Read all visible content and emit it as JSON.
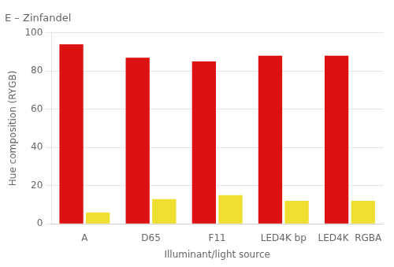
{
  "chart_data": {
    "type": "bar",
    "title": "E – Zinfandel",
    "xlabel": "Illuminant/light source",
    "ylabel": "Hue composition (RYGB)",
    "categories": [
      "A",
      "D65",
      "F11",
      "LED4K bp",
      "LED4K  RGBA"
    ],
    "series": [
      {
        "color": "#dd1111",
        "values": [
          94,
          87,
          85,
          88,
          88
        ]
      },
      {
        "color": "#eedf30",
        "values": [
          6,
          13,
          15,
          12,
          12
        ]
      }
    ],
    "ylim": [
      0,
      100
    ],
    "yticks": [
      0,
      20,
      40,
      60,
      80,
      100
    ],
    "grid": true
  }
}
